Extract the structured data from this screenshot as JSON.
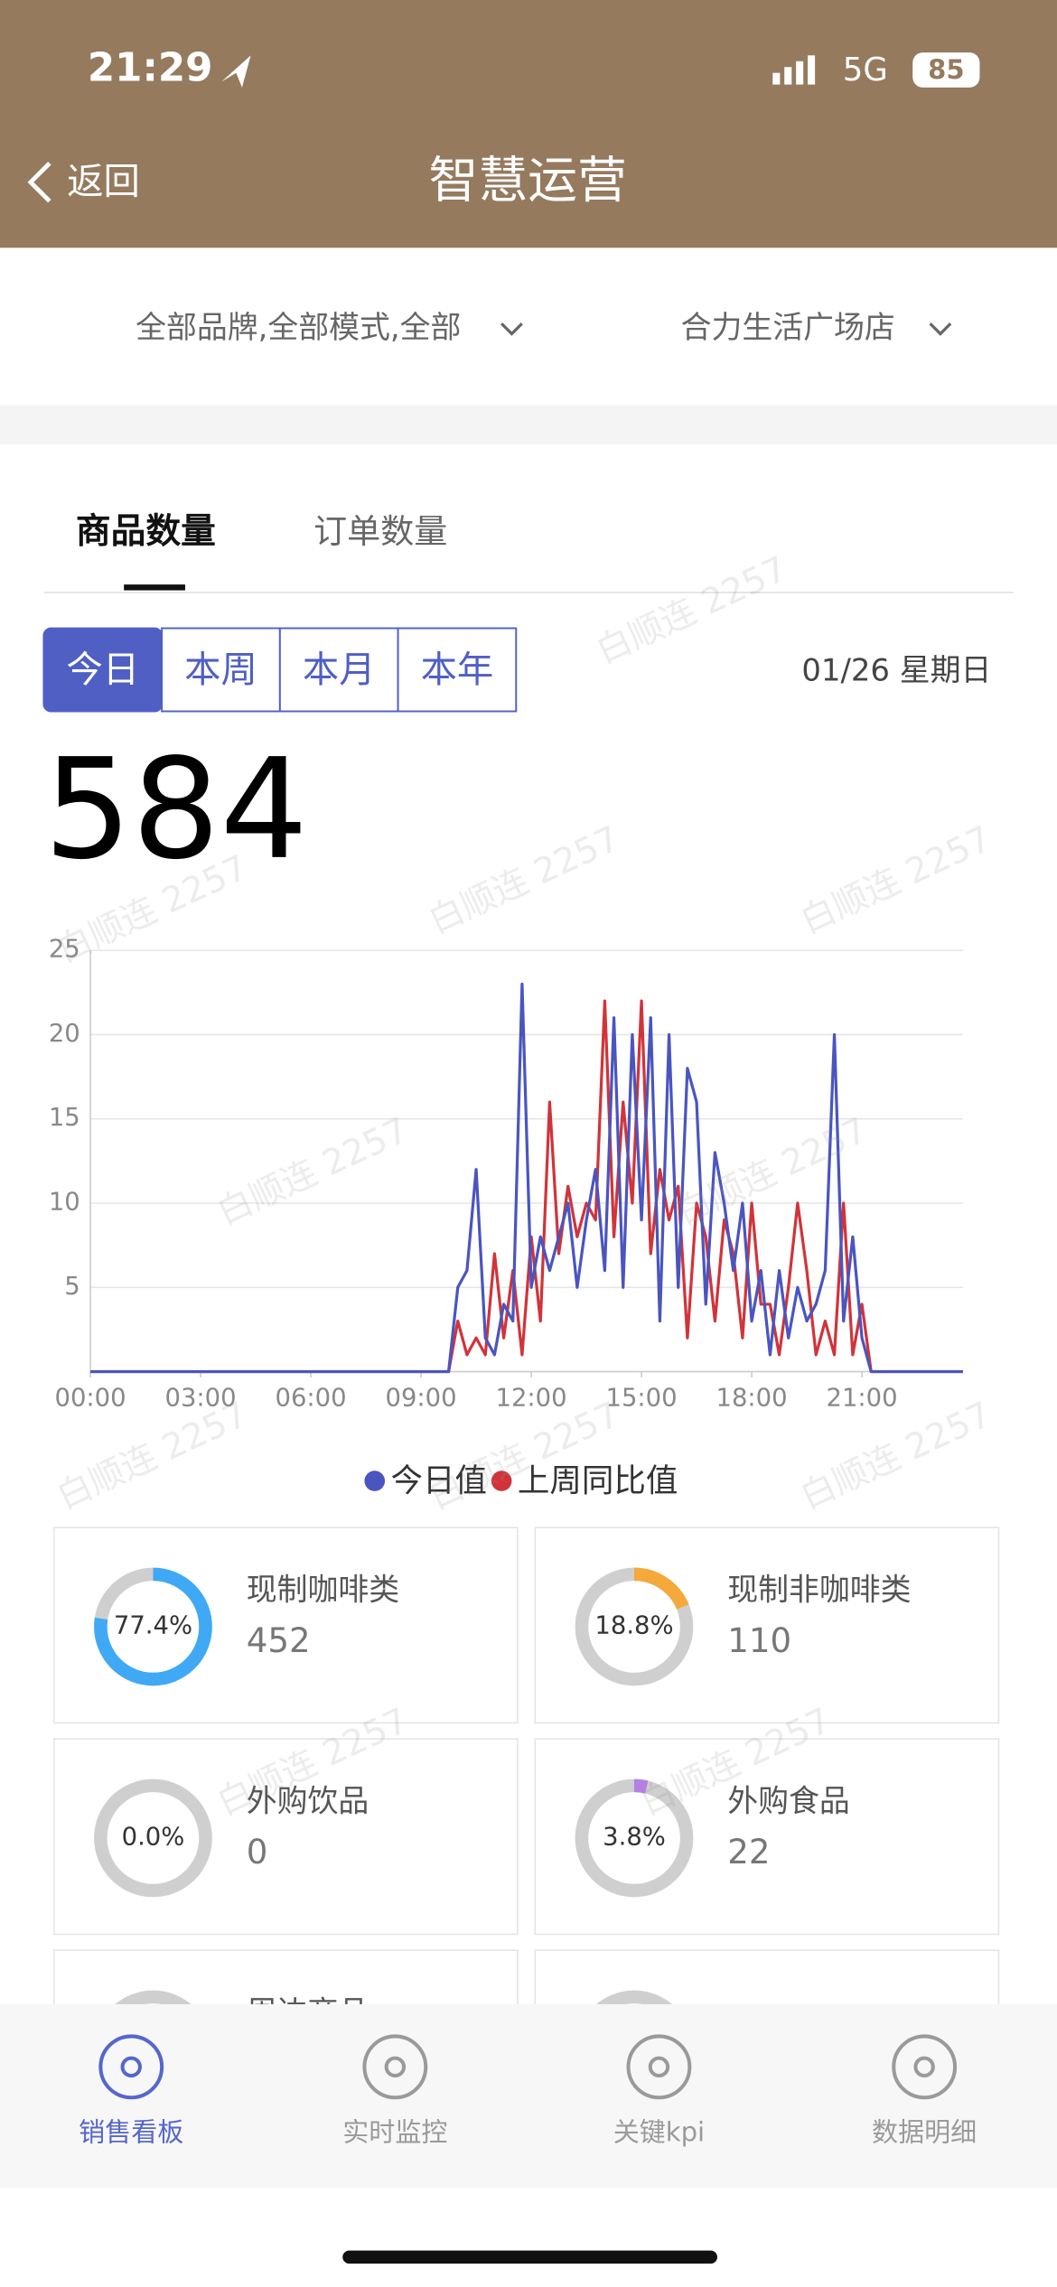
{
  "status_bar": {
    "time": "21:29",
    "network": "5G",
    "battery": "85"
  },
  "nav": {
    "back": "返回",
    "title": "智慧运营"
  },
  "filters": [
    "全部品牌,全部模式,全部",
    "合力生活广场店"
  ],
  "tabs": [
    "商品数量",
    "订单数量"
  ],
  "periods": [
    "今日",
    "本周",
    "本月",
    "本年"
  ],
  "date": "01/26 星期日",
  "total": 584,
  "chart_data": {
    "type": "line",
    "x": [
      0,
      9.75,
      10,
      10.25,
      10.5,
      10.75,
      11,
      11.25,
      11.5,
      11.75,
      12,
      12.25,
      12.5,
      12.75,
      13,
      13.25,
      13.5,
      13.75,
      14,
      14.25,
      14.5,
      14.75,
      15,
      15.25,
      15.5,
      15.75,
      16,
      16.25,
      16.5,
      16.75,
      17,
      17.25,
      17.5,
      17.75,
      18,
      18.25,
      18.5,
      18.75,
      19,
      19.25,
      19.5,
      19.75,
      20,
      20.25,
      20.5,
      20.75,
      21,
      21.25,
      21.5,
      21.75,
      22,
      23.75
    ],
    "xlim": [
      0,
      23.75
    ],
    "xticks": [
      {
        "value": 0,
        "label": "00:00"
      },
      {
        "value": 3,
        "label": "03:00"
      },
      {
        "value": 6,
        "label": "06:00"
      },
      {
        "value": 9,
        "label": "09:00"
      },
      {
        "value": 12,
        "label": "12:00"
      },
      {
        "value": 15,
        "label": "15:00"
      },
      {
        "value": 18,
        "label": "18:00"
      },
      {
        "value": 21,
        "label": "21:00"
      }
    ],
    "ylim": [
      0,
      25
    ],
    "yticks": [
      5,
      10,
      15,
      20,
      25
    ],
    "grid": true,
    "series": [
      {
        "name": "今日值",
        "color": "#4a55c0",
        "values": [
          0,
          0,
          5,
          6,
          12,
          2,
          1,
          4,
          3,
          23,
          5,
          8,
          6,
          8,
          10,
          5,
          9,
          12,
          6,
          21,
          5,
          20,
          9,
          21,
          3,
          20,
          5,
          18,
          16,
          4,
          13,
          10,
          6,
          10,
          3,
          6,
          1,
          6,
          2,
          5,
          3,
          4,
          6,
          20,
          3,
          8,
          2,
          0,
          0,
          0,
          0,
          0
        ]
      },
      {
        "name": "上周同比值",
        "color": "#d0343a",
        "values": [
          0,
          0,
          3,
          1,
          2,
          1,
          7,
          2,
          6,
          1,
          8,
          3,
          16,
          7,
          11,
          8,
          10,
          9,
          22,
          8,
          16,
          10,
          22,
          7,
          12,
          9,
          11,
          2,
          10,
          8,
          3,
          9,
          7,
          2,
          10,
          4,
          4,
          1,
          5,
          10,
          6,
          1,
          3,
          1,
          10,
          1,
          4,
          0,
          0,
          0,
          0,
          0
        ]
      }
    ]
  },
  "cards": [
    {
      "name": "现制咖啡类",
      "value": 77.4,
      "value_label": "77.4%",
      "count": 452,
      "color": "#3fa9f5"
    },
    {
      "name": "现制非咖啡类",
      "value": 18.8,
      "value_label": "18.8%",
      "count": 110,
      "color": "#f5a93a"
    },
    {
      "name": "外购饮品",
      "value": 0,
      "value_label": "0.0%",
      "count": 0,
      "color": "#b57fe3"
    },
    {
      "name": "外购食品",
      "value": 3.8,
      "value_label": "3.8%",
      "count": 22,
      "color": "#b57fe3"
    }
  ],
  "partial_card": "周边商品",
  "bottom_tabs": [
    "销售看板",
    "实时监控",
    "关键kpi",
    "数据明细"
  ],
  "watermark": "白顺连 2257"
}
